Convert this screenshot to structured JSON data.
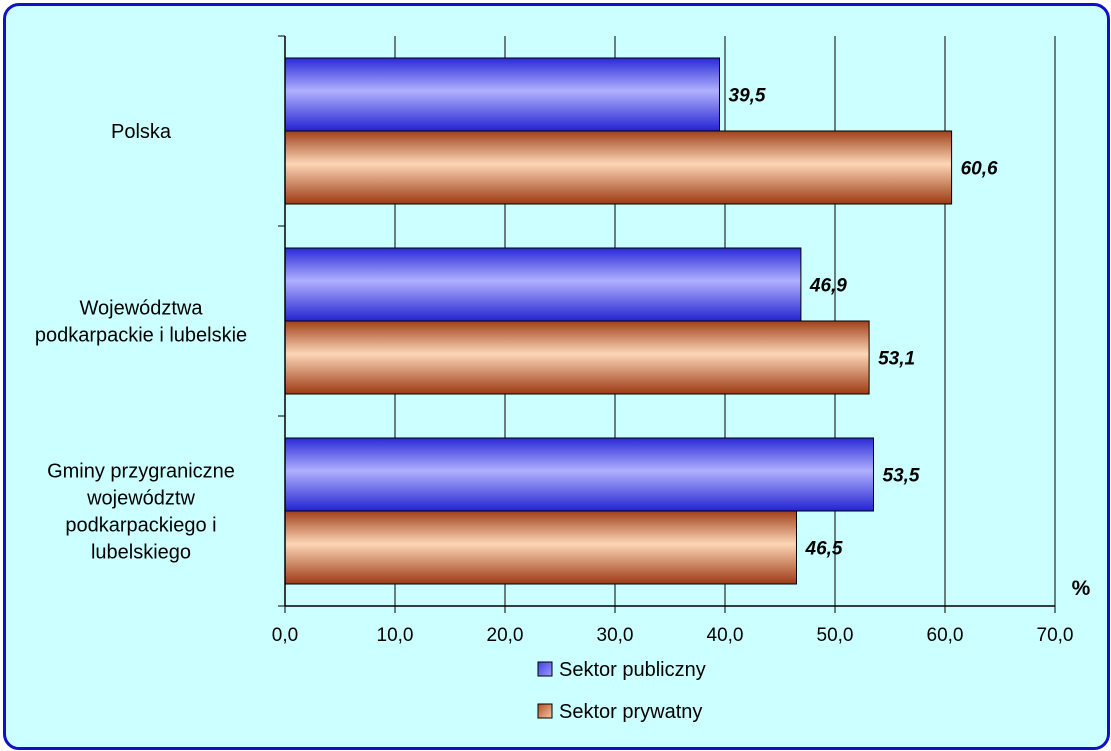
{
  "chart_data": {
    "type": "bar",
    "orientation": "horizontal",
    "categories": [
      [
        "Polska"
      ],
      [
        "Województwa",
        "podkarpackie i lubelskie"
      ],
      [
        "Gminy przygraniczne",
        "województw",
        "podkarpackiego i",
        "lubelskiego"
      ]
    ],
    "series": [
      {
        "name": "Sektor publiczny",
        "values": [
          39.5,
          46.9,
          53.5
        ],
        "labels": [
          "39,5",
          "46,9",
          "53,5"
        ],
        "color": "#6f6ff2"
      },
      {
        "name": "Sektor prywatny",
        "values": [
          60.6,
          53.1,
          46.5
        ],
        "labels": [
          "60,6",
          "53,1",
          "46,5"
        ],
        "color": "#e6a67c"
      }
    ],
    "xlim": [
      0,
      70
    ],
    "xticks": [
      0,
      10,
      20,
      30,
      40,
      50,
      60,
      70
    ],
    "xtick_labels": [
      "0,0",
      "10,0",
      "20,0",
      "30,0",
      "40,0",
      "50,0",
      "60,0",
      "70,0"
    ],
    "unit_label": "%",
    "grid": "vertical",
    "legend_placement": "bottom"
  }
}
